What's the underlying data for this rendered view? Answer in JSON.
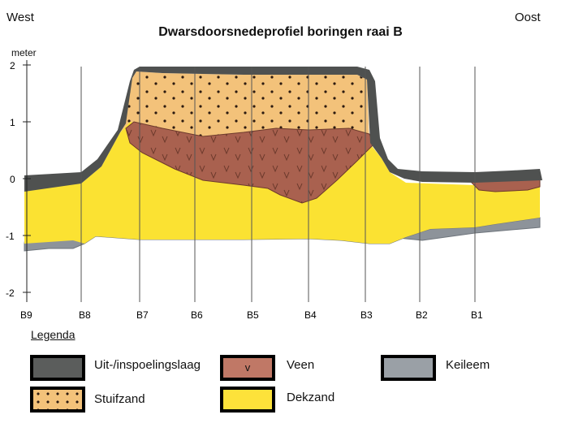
{
  "header": {
    "west": "West",
    "oost": "Oost",
    "title": "Dwarsdoorsnedeprofiel boringen raai B",
    "unit": "meter"
  },
  "y_axis": {
    "ticks": [
      "2",
      "1",
      "0",
      "-1",
      "-2"
    ]
  },
  "boreholes": [
    "B9",
    "B8",
    "B7",
    "B6",
    "B5",
    "B4",
    "B3",
    "B2",
    "B1"
  ],
  "legend": {
    "title": "Legenda",
    "items": [
      {
        "label": "Uit-/inspoelingslaag",
        "color": "#5b5d5c",
        "pattern": "solid"
      },
      {
        "label": "Veen",
        "color": "#c07866",
        "pattern": "v",
        "symbol": "v"
      },
      {
        "label": "Keileem",
        "color": "#9aa0a6",
        "pattern": "solid"
      },
      {
        "label": "Stuifzand",
        "color": "#f3c27a",
        "pattern": "dots"
      },
      {
        "label": "Dekzand",
        "color": "#fde23a",
        "pattern": "solid"
      }
    ]
  },
  "colors": {
    "uitinspoeling": "#4f5150",
    "veen": "#a9614f",
    "keileem": "#8d939a",
    "stuifzand": "#f3c27a",
    "dekzand": "#fbe232"
  }
}
